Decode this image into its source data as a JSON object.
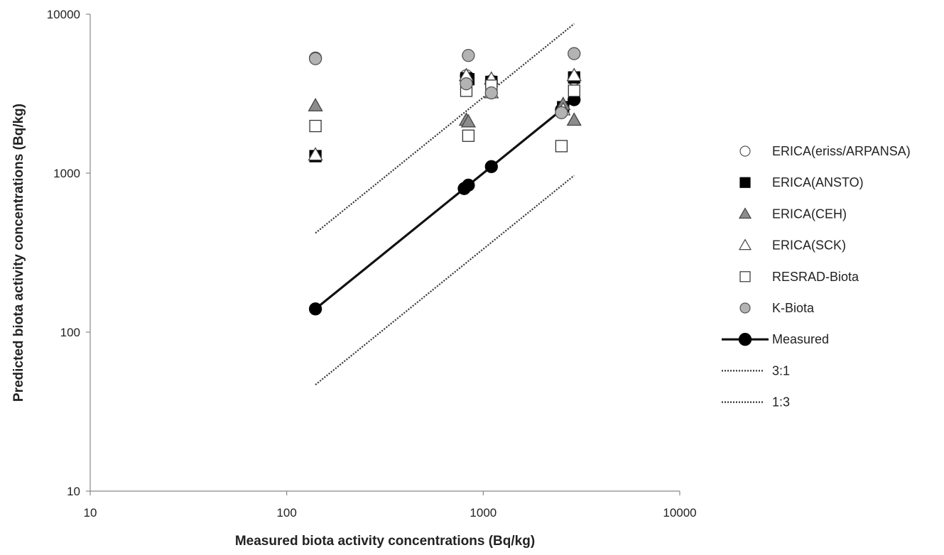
{
  "chart_data": {
    "type": "scatter",
    "title": "",
    "xlabel": "Measured biota activity concentrations (Bq/kg)",
    "ylabel": "Predicted biota activity concentrations (Bq/kg)",
    "xscale": "log",
    "yscale": "log",
    "xlim": [
      10,
      10000
    ],
    "ylim": [
      10,
      10000
    ],
    "xticks": [
      "10",
      "100",
      "1000",
      "10000"
    ],
    "yticks": [
      "10",
      "100",
      "1000",
      "10000"
    ],
    "grid": false,
    "legend_position": "right",
    "series": [
      {
        "name": "ERICA(eriss/ARPANSA)",
        "marker": "circle",
        "fill": "#ffffff",
        "stroke": "#555555",
        "points": [
          [
            140,
            5300
          ],
          [
            820,
            4100
          ],
          [
            1100,
            3800
          ],
          [
            2900,
            3900
          ]
        ]
      },
      {
        "name": "ERICA(ANSTO)",
        "marker": "square",
        "fill": "#000000",
        "stroke": "#000000",
        "points": [
          [
            140,
            1280
          ],
          [
            820,
            3950
          ],
          [
            840,
            3900
          ],
          [
            1100,
            3750
          ],
          [
            2550,
            2600
          ],
          [
            2900,
            4000
          ]
        ]
      },
      {
        "name": "ERICA(CEH)",
        "marker": "triangle",
        "fill": "#8c8c8c",
        "stroke": "#444444",
        "points": [
          [
            140,
            2650
          ],
          [
            820,
            2150
          ],
          [
            840,
            2100
          ],
          [
            2550,
            2700
          ],
          [
            2900,
            2150
          ]
        ]
      },
      {
        "name": "ERICA(SCK)",
        "marker": "triangle",
        "fill": "#ffffff",
        "stroke": "#444444",
        "points": [
          [
            140,
            1300
          ],
          [
            820,
            4100
          ],
          [
            1100,
            3900
          ],
          [
            1100,
            3200
          ],
          [
            2550,
            2500
          ],
          [
            2900,
            4100
          ]
        ]
      },
      {
        "name": "RESRAD-Biota",
        "marker": "square",
        "fill": "#ffffff",
        "stroke": "#333333",
        "points": [
          [
            140,
            1980
          ],
          [
            820,
            3300
          ],
          [
            840,
            1720
          ],
          [
            1100,
            3550
          ],
          [
            2500,
            1480
          ],
          [
            2900,
            3300
          ]
        ]
      },
      {
        "name": "K-Biota",
        "marker": "circle",
        "fill": "#b3b3b3",
        "stroke": "#555555",
        "points": [
          [
            140,
            5250
          ],
          [
            840,
            5500
          ],
          [
            820,
            3650
          ],
          [
            1100,
            3200
          ],
          [
            2500,
            2400
          ],
          [
            2900,
            5650
          ]
        ]
      },
      {
        "name": "Measured",
        "marker": "circle",
        "fill": "#000000",
        "stroke": "#000000",
        "line": "solid",
        "points": [
          [
            140,
            140
          ],
          [
            800,
            800
          ],
          [
            840,
            840
          ],
          [
            1100,
            1100
          ],
          [
            2500,
            2500
          ],
          [
            2900,
            2900
          ]
        ]
      },
      {
        "name": "3:1",
        "marker": "none",
        "line": "dotted",
        "points": [
          [
            140,
            420
          ],
          [
            2900,
            8700
          ]
        ]
      },
      {
        "name": "1:3",
        "marker": "none",
        "line": "dotted",
        "points": [
          [
            140,
            46.7
          ],
          [
            2900,
            967
          ]
        ]
      }
    ]
  }
}
